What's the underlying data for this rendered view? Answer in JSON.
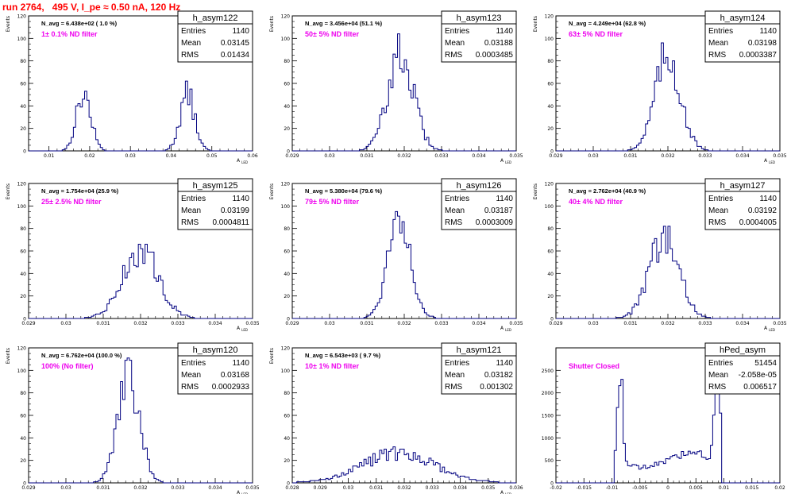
{
  "canvas_title": "run 2764,   495 V, I_pe ≈ 0.50 nA, 120 Hz",
  "colors": {
    "histogram": "#000080",
    "annotation": "#ee00ee",
    "title": "#ff0000",
    "axis": "#000000"
  },
  "chart_data": [
    {
      "type": "bar",
      "name": "h_asym122",
      "navg": "N_avg = 6.438e+02 ( 1.0 %)",
      "filter": "1± 0.1% ND filter",
      "stats": [
        [
          "Entries",
          "1140"
        ],
        [
          "Mean",
          "0.03145"
        ],
        [
          "RMS",
          "0.01434"
        ]
      ],
      "ylabel": "Events",
      "xlabel": "A",
      "xlabel_sub": "LED",
      "xlim": [
        0.005,
        0.06
      ],
      "ylim": [
        0,
        120
      ],
      "xticks": [
        0.01,
        0.02,
        0.03,
        0.04,
        0.05,
        0.06
      ],
      "xtick_labels": [
        "0.01",
        "0.02",
        "0.03",
        "0.04",
        "0.05",
        "0.06"
      ],
      "yticks": [
        0,
        20,
        40,
        60,
        80,
        100,
        120
      ],
      "ytick_labels": [
        "0",
        "20",
        "40",
        "60",
        "80",
        "100",
        "120"
      ],
      "peaks": [
        [
          0.0185,
          0.0018,
          50
        ],
        [
          0.044,
          0.0018,
          50
        ]
      ]
    },
    {
      "type": "bar",
      "name": "h_asym123",
      "navg": "N_avg = 3.456e+04 (51.1 %)",
      "filter": "50± 5% ND filter",
      "stats": [
        [
          "Entries",
          "1140"
        ],
        [
          "Mean",
          "0.03188"
        ],
        [
          "RMS",
          "0.0003485"
        ]
      ],
      "ylabel": "Events",
      "xlabel": "A",
      "xlabel_sub": "LED",
      "xlim": [
        0.029,
        0.035
      ],
      "ylim": [
        0,
        120
      ],
      "xticks": [
        0.029,
        0.03,
        0.031,
        0.032,
        0.033,
        0.034,
        0.035
      ],
      "xtick_labels": [
        "0.029",
        "0.03",
        "0.031",
        "0.032",
        "0.033",
        "0.034",
        "0.035"
      ],
      "yticks": [
        0,
        20,
        40,
        60,
        80,
        100,
        120
      ],
      "ytick_labels": [
        "0",
        "20",
        "40",
        "60",
        "80",
        "100",
        "120"
      ],
      "peaks": [
        [
          0.0319,
          0.00035,
          85
        ]
      ]
    },
    {
      "type": "bar",
      "name": "h_asym124",
      "navg": "N_avg = 4.249e+04 (62.8 %)",
      "filter": "63± 5% ND filter",
      "stats": [
        [
          "Entries",
          "1140"
        ],
        [
          "Mean",
          "0.03198"
        ],
        [
          "RMS",
          "0.0003387"
        ]
      ],
      "ylabel": "Events",
      "xlabel": "A",
      "xlabel_sub": "LED",
      "xlim": [
        0.029,
        0.035
      ],
      "ylim": [
        0,
        120
      ],
      "xticks": [
        0.029,
        0.03,
        0.031,
        0.032,
        0.033,
        0.034,
        0.035
      ],
      "xtick_labels": [
        "0.029",
        "0.03",
        "0.031",
        "0.032",
        "0.033",
        "0.034",
        "0.035"
      ],
      "yticks": [
        0,
        20,
        40,
        60,
        80,
        100,
        120
      ],
      "ytick_labels": [
        "0",
        "20",
        "40",
        "60",
        "80",
        "100",
        "120"
      ],
      "peaks": [
        [
          0.032,
          0.00034,
          85
        ]
      ]
    },
    {
      "type": "bar",
      "name": "h_asym125",
      "navg": "N_avg = 1.754e+04 (25.9 %)",
      "filter": "25± 2.5% ND filter",
      "stats": [
        [
          "Entries",
          "1140"
        ],
        [
          "Mean",
          "0.03199"
        ],
        [
          "RMS",
          "0.0004811"
        ]
      ],
      "ylabel": "Events",
      "xlabel": "A",
      "xlabel_sub": "LED",
      "xlim": [
        0.029,
        0.035
      ],
      "ylim": [
        0,
        120
      ],
      "xticks": [
        0.029,
        0.03,
        0.031,
        0.032,
        0.033,
        0.034,
        0.035
      ],
      "xtick_labels": [
        "0.029",
        "0.03",
        "0.031",
        "0.032",
        "0.033",
        "0.034",
        "0.035"
      ],
      "yticks": [
        0,
        20,
        40,
        60,
        80,
        100,
        120
      ],
      "ytick_labels": [
        "0",
        "20",
        "40",
        "60",
        "80",
        "100",
        "120"
      ],
      "peaks": [
        [
          0.032,
          0.00048,
          60
        ]
      ]
    },
    {
      "type": "bar",
      "name": "h_asym126",
      "navg": "N_avg = 5.380e+04 (79.6 %)",
      "filter": "79± 5% ND filter",
      "stats": [
        [
          "Entries",
          "1140"
        ],
        [
          "Mean",
          "0.03187"
        ],
        [
          "RMS",
          "0.0003009"
        ]
      ],
      "ylabel": "Events",
      "xlabel": "A",
      "xlabel_sub": "LED",
      "xlim": [
        0.029,
        0.035
      ],
      "ylim": [
        0,
        120
      ],
      "xticks": [
        0.029,
        0.03,
        0.031,
        0.032,
        0.033,
        0.034,
        0.035
      ],
      "xtick_labels": [
        "0.029",
        "0.03",
        "0.031",
        "0.032",
        "0.033",
        "0.034",
        "0.035"
      ],
      "yticks": [
        0,
        20,
        40,
        60,
        80,
        100,
        120
      ],
      "ytick_labels": [
        "0",
        "20",
        "40",
        "60",
        "80",
        "100",
        "120"
      ],
      "peaks": [
        [
          0.03187,
          0.0003,
          95
        ]
      ]
    },
    {
      "type": "bar",
      "name": "h_asym127",
      "navg": "N_avg = 2.762e+04 (40.9 %)",
      "filter": "40± 4% ND filter",
      "stats": [
        [
          "Entries",
          "1140"
        ],
        [
          "Mean",
          "0.03192"
        ],
        [
          "RMS",
          "0.0004005"
        ]
      ],
      "ylabel": "Events",
      "xlabel": "A",
      "xlabel_sub": "LED",
      "xlim": [
        0.029,
        0.035
      ],
      "ylim": [
        0,
        120
      ],
      "xticks": [
        0.029,
        0.03,
        0.031,
        0.032,
        0.033,
        0.034,
        0.035
      ],
      "xtick_labels": [
        "0.029",
        "0.03",
        "0.031",
        "0.032",
        "0.033",
        "0.034",
        "0.035"
      ],
      "yticks": [
        0,
        20,
        40,
        60,
        80,
        100,
        120
      ],
      "ytick_labels": [
        "0",
        "20",
        "40",
        "60",
        "80",
        "100",
        "120"
      ],
      "peaks": [
        [
          0.0319,
          0.0004,
          70
        ]
      ]
    },
    {
      "type": "bar",
      "name": "h_asym120",
      "navg": "N_avg = 6.762e+04 (100.0 %)",
      "filter": "100% (No filter)",
      "stats": [
        [
          "Entries",
          "1140"
        ],
        [
          "Mean",
          "0.03168"
        ],
        [
          "RMS",
          "0.0002933"
        ]
      ],
      "ylabel": "Events",
      "xlabel": "A",
      "xlabel_sub": "LED",
      "xlim": [
        0.029,
        0.035
      ],
      "ylim": [
        0,
        120
      ],
      "xticks": [
        0.029,
        0.03,
        0.031,
        0.032,
        0.033,
        0.034,
        0.035
      ],
      "xtick_labels": [
        "0.029",
        "0.03",
        "0.031",
        "0.032",
        "0.033",
        "0.034",
        "0.035"
      ],
      "yticks": [
        0,
        20,
        40,
        60,
        80,
        100,
        120
      ],
      "ytick_labels": [
        "0",
        "20",
        "40",
        "60",
        "80",
        "100",
        "120"
      ],
      "peaks": [
        [
          0.03168,
          0.00029,
          95
        ]
      ]
    },
    {
      "type": "bar",
      "name": "h_asym121",
      "navg": "N_avg = 6.543e+03 ( 9.7 %)",
      "filter": "10± 1% ND filter",
      "stats": [
        [
          "Entries",
          "1140"
        ],
        [
          "Mean",
          "0.03182"
        ],
        [
          "RMS",
          "0.001302"
        ]
      ],
      "ylabel": "Events",
      "xlabel": "A",
      "xlabel_sub": "LED",
      "xlim": [
        0.028,
        0.036
      ],
      "ylim": [
        0,
        120
      ],
      "xticks": [
        0.028,
        0.029,
        0.03,
        0.031,
        0.032,
        0.033,
        0.034,
        0.035,
        0.036
      ],
      "xtick_labels": [
        "0.028",
        "0.029",
        "0.03",
        "0.031",
        "0.032",
        "0.033",
        "0.034",
        "0.035",
        "0.036"
      ],
      "yticks": [
        0,
        20,
        40,
        60,
        80,
        100,
        120
      ],
      "ytick_labels": [
        "0",
        "20",
        "40",
        "60",
        "80",
        "100",
        "120"
      ],
      "peaks": [
        [
          0.0318,
          0.0013,
          26
        ]
      ]
    },
    {
      "type": "bar",
      "name": "hPed_asym",
      "navg": "",
      "filter": "Shutter Closed",
      "stats": [
        [
          "Entries",
          "51454"
        ],
        [
          "Mean",
          "-2.058e-05"
        ],
        [
          "RMS",
          "0.006517"
        ]
      ],
      "ylabel": "",
      "xlabel": "",
      "xlabel_sub": "",
      "xlim": [
        -0.02,
        0.02
      ],
      "ylim": [
        0,
        3000
      ],
      "xticks": [
        -0.02,
        -0.015,
        -0.01,
        -0.005,
        0,
        0.005,
        0.01,
        0.015,
        0.02
      ],
      "xtick_labels": [
        "-0.02",
        "-0.015",
        "-0.01",
        "-0.005",
        "0",
        "0.005",
        "0.01",
        "0.015",
        "0.02"
      ],
      "yticks": [
        0,
        500,
        1000,
        1500,
        2000,
        2500
      ],
      "ytick_labels": [
        "0",
        "500",
        "1000",
        "1500",
        "2000",
        "2500"
      ],
      "pedestal": true
    }
  ]
}
